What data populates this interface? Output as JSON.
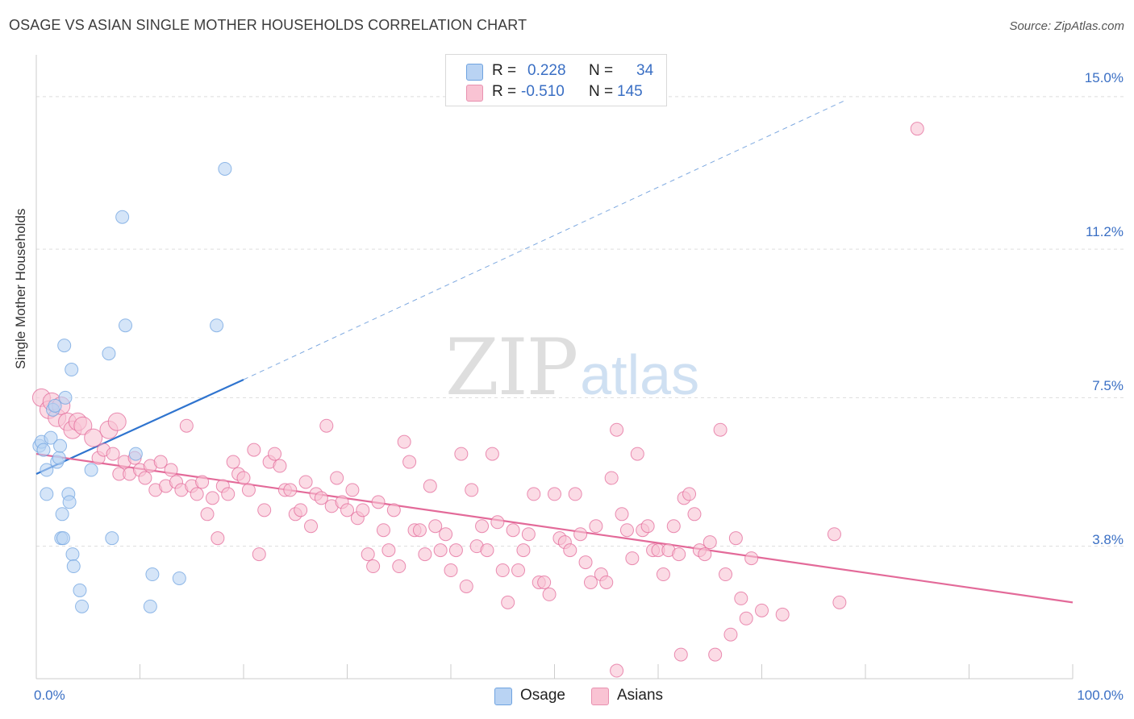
{
  "header": {
    "title": "OSAGE VS ASIAN SINGLE MOTHER HOUSEHOLDS CORRELATION CHART",
    "source": "Source: ZipAtlas.com"
  },
  "watermark": {
    "zip": "ZIP",
    "atlas": "atlas"
  },
  "legend": {
    "rows": [
      {
        "r_label": "R =",
        "r_value": "0.228",
        "n_label": "N =",
        "n_value": "34",
        "color": "#b9d3f3"
      },
      {
        "r_label": "R =",
        "r_value": "-0.510",
        "n_label": "N =",
        "n_value": "145",
        "color": "#f9c3d3"
      }
    ]
  },
  "bottom_legend": [
    {
      "label": "Osage",
      "color": "#b9d3f3"
    },
    {
      "label": "Asians",
      "color": "#f9c3d3"
    }
  ],
  "chart_data": {
    "type": "scatter",
    "title": "OSAGE VS ASIAN SINGLE MOTHER HOUSEHOLDS CORRELATION CHART",
    "ylabel": "Single Mother Households",
    "xlabel": "",
    "x_tick_labels": [
      "0.0%",
      "100.0%"
    ],
    "y_tick_labels": [
      "3.8%",
      "7.5%",
      "11.2%",
      "15.0%"
    ],
    "y_tick_values": [
      3.8,
      7.5,
      11.2,
      15.0
    ],
    "xlim": [
      0,
      100
    ],
    "ylim": [
      0.5,
      15.8
    ],
    "grid": "horizontal dashed",
    "legend_position": "top-center",
    "series": [
      {
        "name": "Osage",
        "color": "#6fa3e0",
        "fill": "#b9d3f3",
        "trend": {
          "x": [
            0,
            20
          ],
          "y": [
            5.6,
            7.95
          ],
          "extended_to": [
            78,
            14.9
          ]
        },
        "points": [
          [
            0.3,
            6.3
          ],
          [
            0.5,
            6.4
          ],
          [
            0.7,
            6.2
          ],
          [
            1.0,
            5.7
          ],
          [
            1.0,
            5.1
          ],
          [
            1.4,
            6.5
          ],
          [
            1.6,
            7.2
          ],
          [
            1.8,
            7.3
          ],
          [
            2.0,
            5.9
          ],
          [
            2.2,
            6.0
          ],
          [
            2.3,
            6.3
          ],
          [
            2.4,
            4.0
          ],
          [
            2.5,
            4.6
          ],
          [
            2.6,
            4.0
          ],
          [
            2.7,
            8.8
          ],
          [
            2.8,
            7.5
          ],
          [
            3.1,
            5.1
          ],
          [
            3.2,
            4.9
          ],
          [
            3.4,
            8.2
          ],
          [
            3.5,
            3.6
          ],
          [
            3.6,
            3.3
          ],
          [
            4.2,
            2.7
          ],
          [
            4.4,
            2.3
          ],
          [
            5.3,
            5.7
          ],
          [
            7.0,
            8.6
          ],
          [
            7.3,
            4.0
          ],
          [
            8.3,
            12.0
          ],
          [
            8.6,
            9.3
          ],
          [
            9.6,
            6.1
          ],
          [
            11.0,
            2.3
          ],
          [
            11.2,
            3.1
          ],
          [
            13.8,
            3.0
          ],
          [
            17.4,
            9.3
          ],
          [
            18.2,
            13.2
          ]
        ]
      },
      {
        "name": "Asians",
        "color": "#e36a99",
        "fill": "#f9c3d3",
        "trend": {
          "x": [
            0,
            100
          ],
          "y": [
            6.1,
            2.4
          ]
        },
        "points": [
          [
            0.5,
            7.5
          ],
          [
            1.2,
            7.2
          ],
          [
            1.5,
            7.4
          ],
          [
            2.0,
            7.0
          ],
          [
            2.4,
            7.3
          ],
          [
            3.0,
            6.9
          ],
          [
            3.5,
            6.7
          ],
          [
            4.0,
            6.9
          ],
          [
            4.5,
            6.8
          ],
          [
            5.5,
            6.5
          ],
          [
            6.0,
            6.0
          ],
          [
            6.5,
            6.2
          ],
          [
            7.0,
            6.7
          ],
          [
            7.4,
            6.1
          ],
          [
            7.8,
            6.9
          ],
          [
            8.0,
            5.6
          ],
          [
            8.5,
            5.9
          ],
          [
            9.0,
            5.6
          ],
          [
            9.5,
            6.0
          ],
          [
            10.0,
            5.7
          ],
          [
            10.5,
            5.5
          ],
          [
            11.0,
            5.8
          ],
          [
            11.5,
            5.2
          ],
          [
            12.0,
            5.9
          ],
          [
            12.5,
            5.3
          ],
          [
            13.0,
            5.7
          ],
          [
            13.5,
            5.4
          ],
          [
            14.0,
            5.2
          ],
          [
            14.5,
            6.8
          ],
          [
            15.0,
            5.3
          ],
          [
            15.5,
            5.1
          ],
          [
            16.0,
            5.4
          ],
          [
            16.5,
            4.6
          ],
          [
            17.0,
            5.0
          ],
          [
            17.5,
            4.0
          ],
          [
            18.0,
            5.3
          ],
          [
            18.5,
            5.1
          ],
          [
            19.0,
            5.9
          ],
          [
            19.5,
            5.6
          ],
          [
            20.0,
            5.5
          ],
          [
            20.5,
            5.2
          ],
          [
            21.0,
            6.2
          ],
          [
            21.5,
            3.6
          ],
          [
            22.0,
            4.7
          ],
          [
            22.5,
            5.9
          ],
          [
            23.0,
            6.1
          ],
          [
            23.5,
            5.8
          ],
          [
            24.0,
            5.2
          ],
          [
            24.5,
            5.2
          ],
          [
            25.0,
            4.6
          ],
          [
            25.5,
            4.7
          ],
          [
            26.0,
            5.4
          ],
          [
            26.5,
            4.3
          ],
          [
            27.0,
            5.1
          ],
          [
            27.5,
            5.0
          ],
          [
            28.0,
            6.8
          ],
          [
            28.5,
            4.8
          ],
          [
            29.0,
            5.5
          ],
          [
            29.5,
            4.9
          ],
          [
            30.0,
            4.7
          ],
          [
            30.5,
            5.2
          ],
          [
            31.0,
            4.5
          ],
          [
            31.5,
            4.7
          ],
          [
            32.0,
            3.6
          ],
          [
            32.5,
            3.3
          ],
          [
            33.0,
            4.9
          ],
          [
            33.5,
            4.2
          ],
          [
            34.0,
            3.7
          ],
          [
            34.5,
            4.7
          ],
          [
            35.0,
            3.3
          ],
          [
            35.5,
            6.4
          ],
          [
            36.0,
            5.9
          ],
          [
            36.5,
            4.2
          ],
          [
            37.0,
            4.2
          ],
          [
            37.5,
            3.6
          ],
          [
            38.0,
            5.3
          ],
          [
            38.5,
            4.3
          ],
          [
            39.0,
            3.7
          ],
          [
            39.5,
            4.1
          ],
          [
            40.0,
            3.2
          ],
          [
            40.5,
            3.7
          ],
          [
            41.0,
            6.1
          ],
          [
            41.5,
            2.8
          ],
          [
            42.0,
            5.2
          ],
          [
            42.5,
            3.8
          ],
          [
            43.0,
            4.3
          ],
          [
            43.5,
            3.7
          ],
          [
            44.0,
            6.1
          ],
          [
            44.5,
            4.4
          ],
          [
            45.0,
            3.2
          ],
          [
            45.5,
            2.4
          ],
          [
            46.0,
            4.2
          ],
          [
            46.5,
            3.2
          ],
          [
            47.0,
            3.7
          ],
          [
            47.5,
            4.1
          ],
          [
            48.0,
            5.1
          ],
          [
            48.5,
            2.9
          ],
          [
            49.0,
            2.9
          ],
          [
            49.5,
            2.6
          ],
          [
            50.0,
            5.1
          ],
          [
            50.5,
            4.0
          ],
          [
            51.0,
            3.9
          ],
          [
            51.5,
            3.7
          ],
          [
            52.0,
            5.1
          ],
          [
            52.5,
            4.1
          ],
          [
            53.0,
            3.4
          ],
          [
            53.5,
            2.9
          ],
          [
            54.0,
            4.3
          ],
          [
            54.5,
            3.1
          ],
          [
            55.0,
            2.9
          ],
          [
            55.5,
            5.5
          ],
          [
            56.0,
            6.7
          ],
          [
            56.5,
            4.6
          ],
          [
            57.0,
            4.2
          ],
          [
            57.5,
            3.5
          ],
          [
            58.0,
            6.1
          ],
          [
            58.5,
            4.2
          ],
          [
            59.0,
            4.3
          ],
          [
            59.5,
            3.7
          ],
          [
            60.0,
            3.7
          ],
          [
            60.5,
            3.1
          ],
          [
            61.0,
            3.7
          ],
          [
            61.5,
            4.3
          ],
          [
            62.0,
            3.6
          ],
          [
            62.5,
            5.0
          ],
          [
            63.0,
            5.1
          ],
          [
            63.5,
            4.6
          ],
          [
            64.0,
            3.7
          ],
          [
            64.5,
            3.6
          ],
          [
            65.0,
            3.9
          ],
          [
            65.5,
            1.1
          ],
          [
            66.0,
            6.7
          ],
          [
            66.5,
            3.1
          ],
          [
            67.0,
            1.6
          ],
          [
            67.5,
            4.0
          ],
          [
            68.0,
            2.5
          ],
          [
            68.5,
            2.0
          ],
          [
            69.0,
            3.5
          ],
          [
            70.0,
            2.2
          ],
          [
            72.0,
            2.1
          ],
          [
            77.0,
            4.1
          ],
          [
            77.5,
            2.4
          ],
          [
            85.0,
            14.2
          ],
          [
            56.0,
            0.7
          ],
          [
            62.2,
            1.1
          ]
        ]
      }
    ]
  }
}
